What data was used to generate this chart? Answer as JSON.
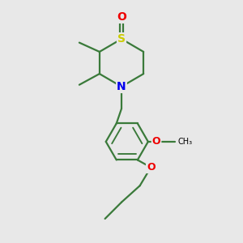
{
  "bg_color": "#e8e8e8",
  "bond_color": "#3a7a3a",
  "bond_width": 1.6,
  "atom_S_color": "#cccc00",
  "atom_N_color": "#0000ee",
  "atom_O_color": "#ee0000",
  "font_size": 9,
  "fig_size": [
    3.0,
    3.0
  ],
  "dpi": 100,
  "xlim": [
    0,
    10
  ],
  "ylim": [
    -2,
    11
  ]
}
